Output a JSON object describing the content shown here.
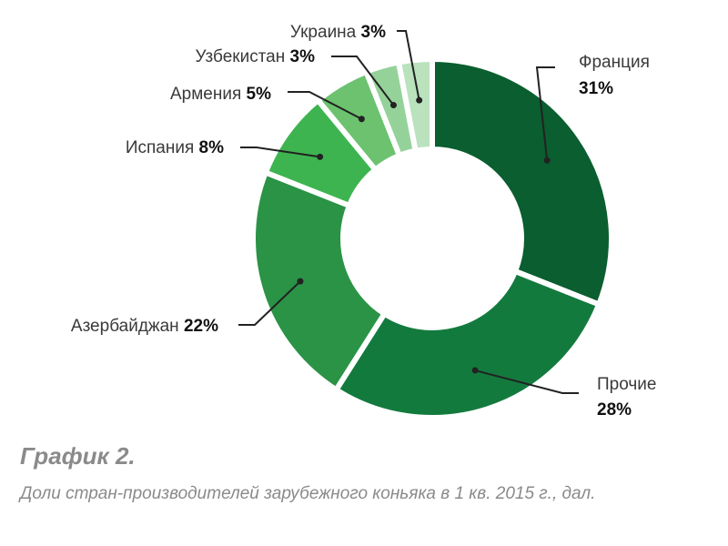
{
  "caption": {
    "title": "График 2.",
    "subtitle": "Доли стран-производителей зарубежного коньяка в 1 кв. 2015 г., дал."
  },
  "chart_data": {
    "type": "pie",
    "donut": true,
    "slices": [
      {
        "label": "Франция",
        "value": 31,
        "value_text": "31%",
        "color": "#0a5e2f"
      },
      {
        "label": "Прочие",
        "value": 28,
        "value_text": "28%",
        "color": "#137a3e"
      },
      {
        "label": "Азербайджан",
        "value": 22,
        "value_text": "22%",
        "color": "#2a9346"
      },
      {
        "label": "Испания",
        "value": 8,
        "value_text": "8%",
        "color": "#3db450"
      },
      {
        "label": "Армения",
        "value": 5,
        "value_text": "5%",
        "color": "#6cc26f"
      },
      {
        "label": "Узбекистан",
        "value": 3,
        "value_text": "3%",
        "color": "#95d29a"
      },
      {
        "label": "Украина",
        "value": 3,
        "value_text": "3%",
        "color": "#b9e2bd"
      }
    ]
  }
}
